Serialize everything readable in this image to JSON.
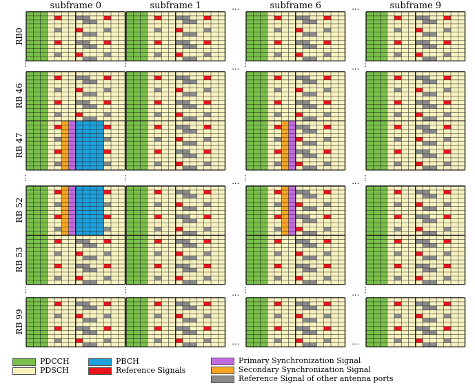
{
  "subframes": [
    {
      "label": "subframe 0"
    },
    {
      "label": "subframe 1"
    },
    {
      "label": "subframe 6"
    },
    {
      "label": "subframe 9"
    }
  ],
  "rb_labels": [
    "RB0",
    "RB 46",
    "RB 47",
    "RB 52",
    "RB 53",
    "RB 99"
  ],
  "ellipsis": "…",
  "vellipsis": "⋮",
  "colors": {
    "pdcch": "#79c04a",
    "pdsch": "#f8f2c0",
    "pbch": "#1ea0dc",
    "rs": "#e8161b",
    "pss": "#c26bdf",
    "sss": "#f5a623",
    "rs_other": "#8a8a8a",
    "grid": "#1a1a1a"
  },
  "legend": {
    "pdcch": "PDCCH",
    "pdsch": "PDSCH",
    "pbch": "PBCH",
    "rs": "Reference Signals",
    "pss": "Primary Synchronization Signal",
    "sss": "Secondary Synchronization Signal",
    "rs_other": "Reference Signal  of other antenna ports"
  }
}
